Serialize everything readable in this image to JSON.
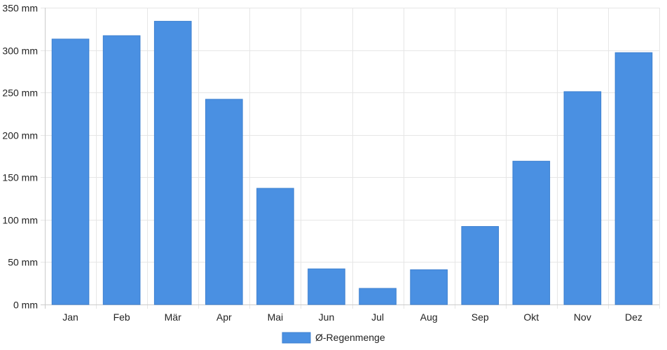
{
  "chart_data": {
    "type": "bar",
    "categories": [
      "Jan",
      "Feb",
      "Mär",
      "Apr",
      "Mai",
      "Jun",
      "Jul",
      "Aug",
      "Sep",
      "Okt",
      "Nov",
      "Dez"
    ],
    "series": [
      {
        "name": "Ø-Regenmenge",
        "values": [
          313,
          317,
          334,
          242,
          137,
          42,
          19,
          41,
          92,
          169,
          251,
          297
        ],
        "color": "#4a90e2"
      }
    ],
    "ylim": [
      0,
      350
    ],
    "yticks": [
      0,
      50,
      100,
      150,
      200,
      250,
      300,
      350
    ],
    "ytick_unit": "mm",
    "grid": true,
    "legend_position": "bottom-center",
    "title": "",
    "xlabel": "",
    "ylabel": ""
  }
}
